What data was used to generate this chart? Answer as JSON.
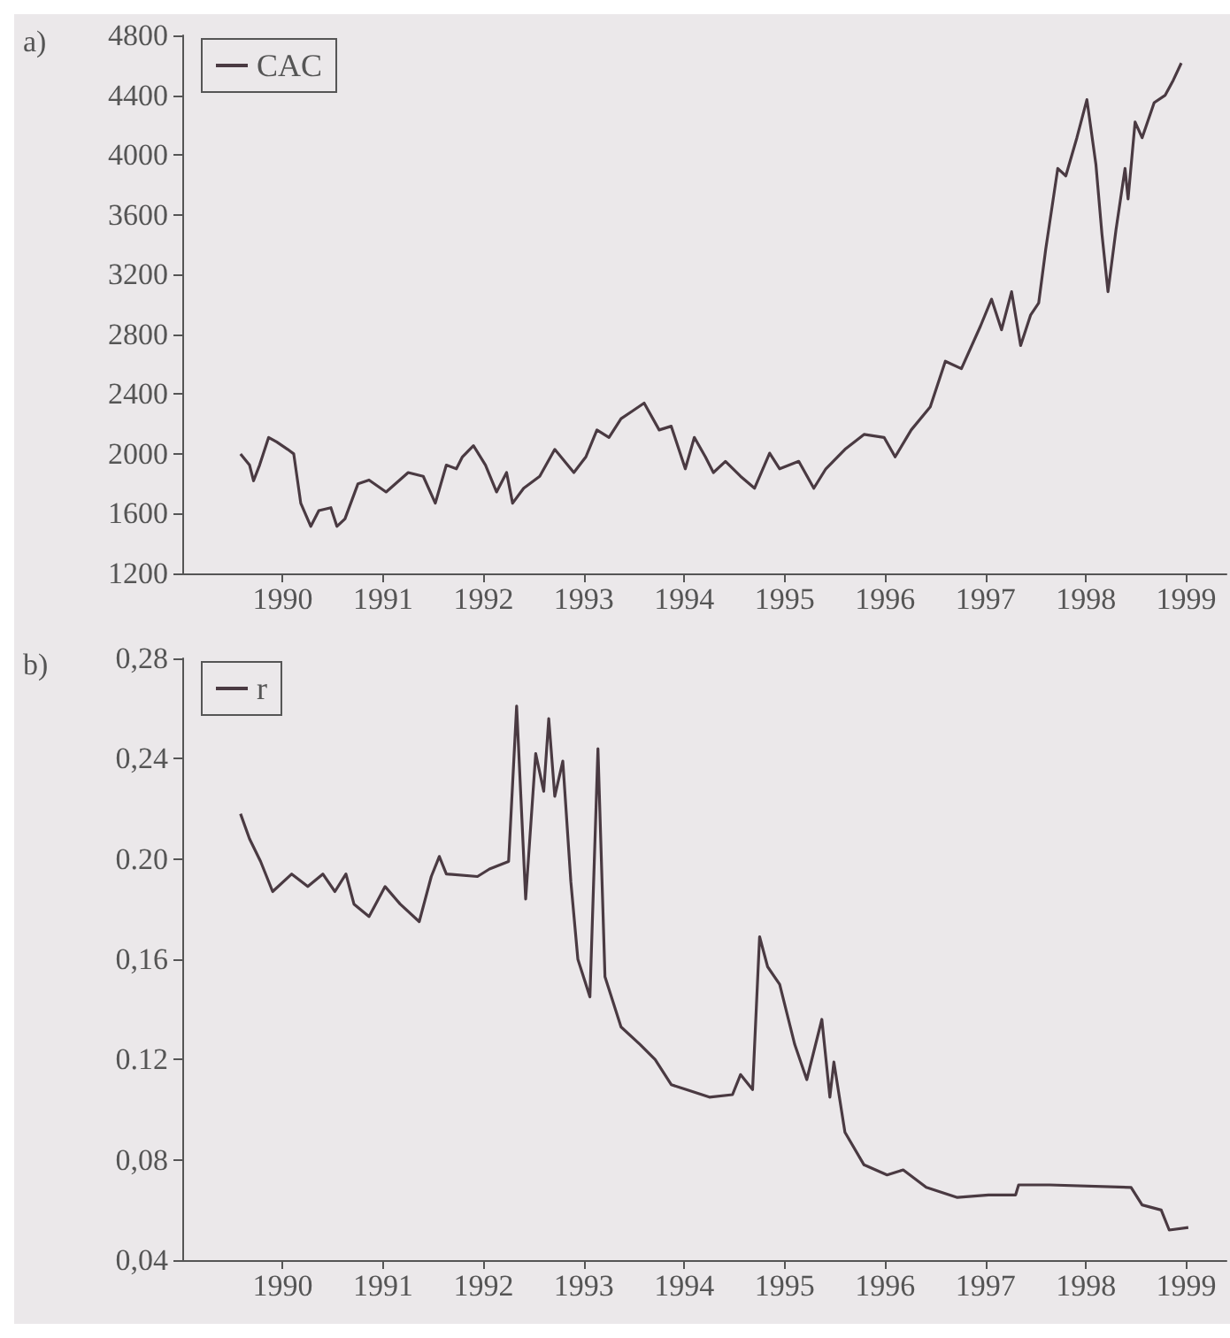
{
  "chart_data": [
    {
      "type": "line",
      "title": "a)",
      "legend": "top left",
      "grid": false,
      "marker": "none",
      "line_style": "solid",
      "xlim": [
        1989,
        1999.4
      ],
      "xticks": [
        1990,
        1991,
        1992,
        1993,
        1994,
        1995,
        1996,
        1997,
        1998,
        1999
      ],
      "ylim": [
        1200,
        4800
      ],
      "yticks": [
        1200,
        1600,
        2000,
        2400,
        2800,
        3200,
        3600,
        4000,
        4400,
        4800
      ],
      "series": [
        {
          "name": "CAC",
          "color": "#4a3a42",
          "x": [
            1989.58,
            1989.67,
            1989.71,
            1989.77,
            1989.86,
            1989.94,
            1990.05,
            1990.11,
            1990.18,
            1990.28,
            1990.36,
            1990.48,
            1990.54,
            1990.62,
            1990.75,
            1990.86,
            1991.03,
            1991.25,
            1991.4,
            1991.52,
            1991.63,
            1991.73,
            1991.79,
            1991.9,
            1992.02,
            1992.13,
            1992.23,
            1992.29,
            1992.4,
            1992.56,
            1992.71,
            1992.9,
            1993.02,
            1993.13,
            1993.25,
            1993.37,
            1993.48,
            1993.6,
            1993.75,
            1993.87,
            1994.01,
            1994.1,
            1994.21,
            1994.29,
            1994.41,
            1994.56,
            1994.7,
            1994.85,
            1994.95,
            1995.14,
            1995.29,
            1995.41,
            1995.6,
            1995.79,
            1995.99,
            1996.1,
            1996.26,
            1996.45,
            1996.6,
            1996.76,
            1996.95,
            1997.06,
            1997.16,
            1997.26,
            1997.35,
            1997.45,
            1997.53,
            1997.6,
            1997.72,
            1997.8,
            1997.91,
            1998.01,
            1998.1,
            1998.16,
            1998.22,
            1998.3,
            1998.39,
            1998.42,
            1998.49,
            1998.56,
            1998.68,
            1998.79,
            1998.87,
            1998.95
          ],
          "values": [
            2000,
            1925,
            1820,
            1925,
            2110,
            2080,
            2030,
            2000,
            1670,
            1515,
            1620,
            1640,
            1515,
            1565,
            1800,
            1825,
            1745,
            1875,
            1850,
            1670,
            1925,
            1900,
            1980,
            2055,
            1925,
            1745,
            1875,
            1670,
            1770,
            1850,
            2030,
            1875,
            1980,
            2160,
            2110,
            2235,
            2285,
            2340,
            2160,
            2185,
            1900,
            2110,
            1980,
            1875,
            1950,
            1850,
            1770,
            2005,
            1900,
            1950,
            1770,
            1900,
            2030,
            2130,
            2110,
            1980,
            2160,
            2315,
            2620,
            2570,
            2855,
            3035,
            2830,
            3085,
            2725,
            2930,
            3010,
            3370,
            3910,
            3860,
            4115,
            4370,
            3935,
            3470,
            3085,
            3500,
            3910,
            3705,
            4220,
            4115,
            4350,
            4400,
            4500,
            4615
          ]
        }
      ]
    },
    {
      "type": "line",
      "title": "b)",
      "legend": "top left",
      "grid": false,
      "marker": "none",
      "line_style": "solid",
      "xlim": [
        1989,
        1999.4
      ],
      "xticks": [
        1990,
        1991,
        1992,
        1993,
        1994,
        1995,
        1996,
        1997,
        1998,
        1999
      ],
      "ylim": [
        0.04,
        0.28
      ],
      "yticks": [
        {
          "value": 0.04,
          "label": "0,04"
        },
        {
          "value": 0.08,
          "label": "0,08"
        },
        {
          "value": 0.12,
          "label": "0.12"
        },
        {
          "value": 0.16,
          "label": "0,16"
        },
        {
          "value": 0.2,
          "label": "0.20"
        },
        {
          "value": 0.24,
          "label": "0,24"
        },
        {
          "value": 0.28,
          "label": "0,28"
        }
      ],
      "series": [
        {
          "name": "r",
          "color": "#4a3a42",
          "x": [
            1989.58,
            1989.67,
            1989.78,
            1989.9,
            1990.09,
            1990.25,
            1990.4,
            1990.52,
            1990.63,
            1990.71,
            1990.86,
            1991.02,
            1991.17,
            1991.36,
            1991.48,
            1991.56,
            1991.63,
            1991.94,
            1992.06,
            1992.25,
            1992.33,
            1992.42,
            1992.52,
            1992.6,
            1992.65,
            1992.71,
            1992.79,
            1992.87,
            1992.94,
            1993.06,
            1993.14,
            1993.21,
            1993.37,
            1993.56,
            1993.71,
            1993.87,
            1994.02,
            1994.25,
            1994.48,
            1994.56,
            1994.68,
            1994.75,
            1994.83,
            1994.95,
            1995.1,
            1995.22,
            1995.37,
            1995.45,
            1995.49,
            1995.6,
            1995.79,
            1996.02,
            1996.18,
            1996.41,
            1996.72,
            1997.03,
            1997.3,
            1997.33,
            1997.64,
            1998.45,
            1998.56,
            1998.75,
            1998.83,
            1999.02
          ],
          "values": [
            0.218,
            0.208,
            0.199,
            0.187,
            0.194,
            0.189,
            0.194,
            0.187,
            0.194,
            0.182,
            0.177,
            0.189,
            0.182,
            0.175,
            0.193,
            0.201,
            0.194,
            0.193,
            0.196,
            0.199,
            0.261,
            0.184,
            0.242,
            0.227,
            0.256,
            0.225,
            0.239,
            0.191,
            0.16,
            0.145,
            0.244,
            0.153,
            0.133,
            0.126,
            0.12,
            0.11,
            0.108,
            0.105,
            0.106,
            0.114,
            0.108,
            0.169,
            0.157,
            0.15,
            0.126,
            0.112,
            0.136,
            0.105,
            0.119,
            0.091,
            0.078,
            0.074,
            0.076,
            0.069,
            0.065,
            0.066,
            0.066,
            0.07,
            0.07,
            0.069,
            0.062,
            0.06,
            0.052,
            0.053
          ]
        }
      ]
    }
  ]
}
